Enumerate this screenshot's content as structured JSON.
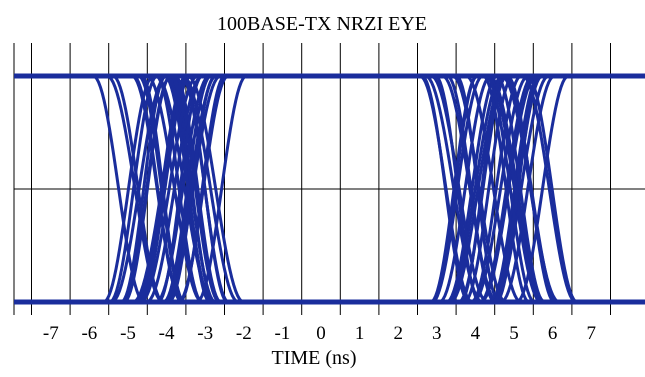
{
  "chart_data": {
    "type": "line",
    "title": "100BASE-TX NRZI EYE",
    "xlabel": "TIME (ns)",
    "ylabel": "",
    "x_ticks": [
      -7,
      -6,
      -5,
      -4,
      -3,
      -2,
      -1,
      0,
      1,
      2,
      3,
      4,
      5,
      6,
      7
    ],
    "x_tick_labels": [
      "-7",
      "-6",
      "-5",
      "-4",
      "-3",
      "-2",
      "-1",
      "0",
      "1",
      "2",
      "3",
      "4",
      "5",
      "6",
      "7"
    ],
    "xlim": [
      -8,
      8
    ],
    "ylim": [
      -1,
      1
    ],
    "grid": true,
    "series_color": "#1a2d9c",
    "transition_groups": [
      {
        "center": -3.9,
        "jitter_min": -1.4,
        "jitter_max": 1.4,
        "rise_time": 1.3
      },
      {
        "center": 4.6,
        "jitter_min": -1.4,
        "jitter_max": 1.4,
        "rise_time": 1.3
      }
    ],
    "levels": [
      -1,
      1
    ]
  }
}
